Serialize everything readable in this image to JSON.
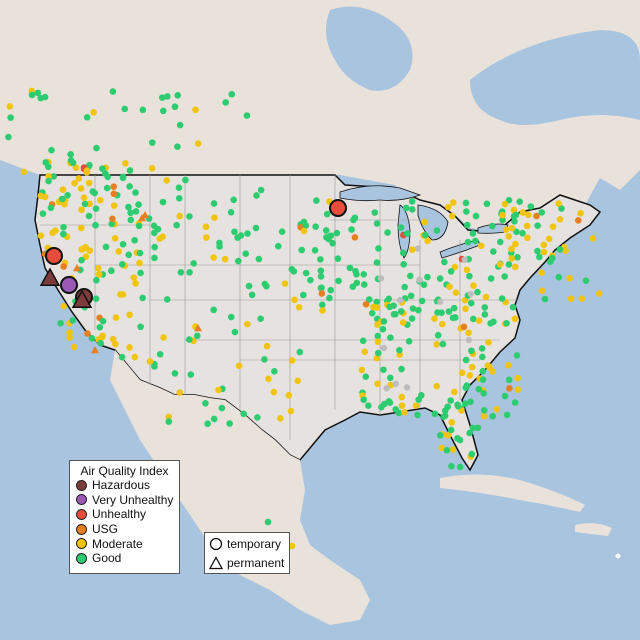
{
  "legend": {
    "title": "Air Quality Index",
    "categories": [
      {
        "label": "Hazardous",
        "color": "#7e3b3b"
      },
      {
        "label": "Very Unhealthy",
        "color": "#9b59b6"
      },
      {
        "label": "Unhealthy",
        "color": "#e74c3c"
      },
      {
        "label": "USG",
        "color": "#e67e22"
      },
      {
        "label": "Moderate",
        "color": "#f1c40f"
      },
      {
        "label": "Good",
        "color": "#2ecc71"
      }
    ]
  },
  "shape_legend": {
    "temporary": "temporary",
    "permanent": "permanent"
  },
  "colors": {
    "ocean": "#a9c4df",
    "land": "#e9e3dc",
    "us_land": "#e6e2df",
    "no_data": "#bdbdbd"
  }
}
